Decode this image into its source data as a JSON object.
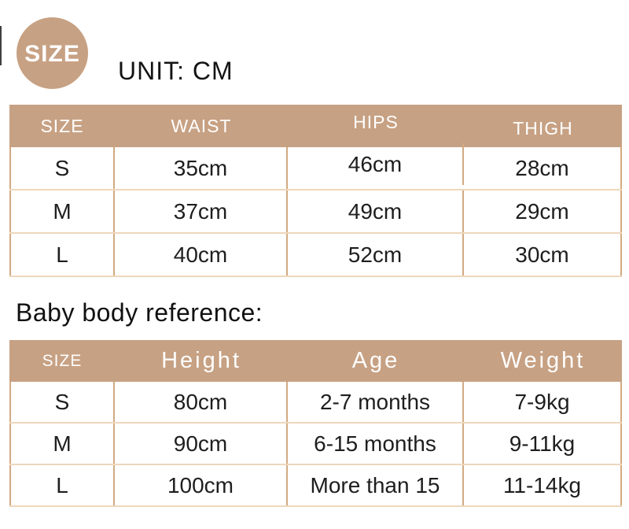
{
  "badge": {
    "label": "SIZE"
  },
  "unit": {
    "label": "UNIT: CM"
  },
  "colors": {
    "tan": "#c7a183",
    "column_line": "#d2aa81",
    "row_line": "#eed7bc",
    "text": "#1e1e1e",
    "header_text": "#ffffff"
  },
  "size_table": {
    "headers": [
      "SIZE",
      "WAIST",
      "HIPS",
      "THIGH"
    ],
    "rows": [
      {
        "size": "S",
        "waist": "35cm",
        "hips": "46cm",
        "thigh": "28cm"
      },
      {
        "size": "M",
        "waist": "37cm",
        "hips": "49cm",
        "thigh": "29cm"
      },
      {
        "size": "L",
        "waist": "40cm",
        "hips": "52cm",
        "thigh": "30cm"
      }
    ]
  },
  "reference": {
    "heading": "Baby body reference:",
    "table": {
      "headers": [
        "SIZE",
        "Height",
        "Age",
        "Weight"
      ],
      "rows": [
        {
          "size": "S",
          "height": "80cm",
          "age": "2-7 months",
          "weight": "7-9kg"
        },
        {
          "size": "M",
          "height": "90cm",
          "age": "6-15 months",
          "weight": "9-11kg"
        },
        {
          "size": "L",
          "height": "100cm",
          "age": "More than 15",
          "weight": "11-14kg"
        }
      ]
    }
  }
}
